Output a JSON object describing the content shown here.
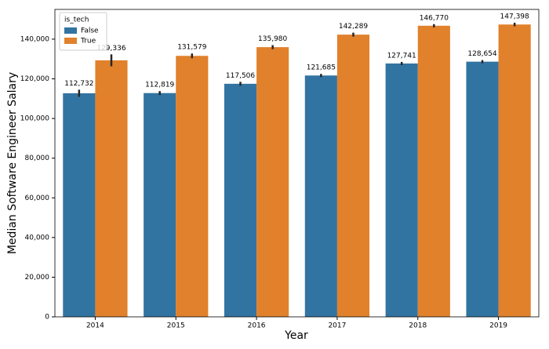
{
  "chart_data": {
    "type": "grouped-bar",
    "x_label": "Year",
    "y_label": "Median Software Engineer Salary",
    "categories": [
      "2014",
      "2015",
      "2016",
      "2017",
      "2018",
      "2019"
    ],
    "legend_title": "is_tech",
    "legend": "upper left",
    "series": [
      {
        "name": "False",
        "color": "#3274a1",
        "values": [
          112732,
          112819,
          117506,
          121685,
          127741,
          128654
        ],
        "value_labels": [
          "112,732",
          "112,819",
          "117,506",
          "121,685",
          "127,741",
          "128,654"
        ],
        "errors": [
          1800,
          1000,
          1000,
          800,
          800,
          800
        ]
      },
      {
        "name": "True",
        "color": "#e1812c",
        "values": [
          129336,
          131579,
          135980,
          142289,
          146770,
          147398
        ],
        "value_labels": [
          "129,336",
          "131,579",
          "135,980",
          "142,289",
          "146,770",
          "147,398"
        ],
        "errors": [
          3000,
          1200,
          1000,
          1000,
          800,
          900
        ]
      }
    ],
    "ylim": [
      0,
      155000
    ],
    "yticks": [
      0,
      {
        "value": 20000,
        "label": "20,000"
      },
      {
        "value": 40000,
        "label": "40,000"
      },
      {
        "value": 60000,
        "label": "60,000"
      },
      {
        "value": 80000,
        "label": "80,000"
      },
      {
        "value": 100000,
        "label": "100,000"
      },
      {
        "value": 120000,
        "label": "120,000"
      },
      {
        "value": 140000,
        "label": "140,000"
      }
    ]
  }
}
